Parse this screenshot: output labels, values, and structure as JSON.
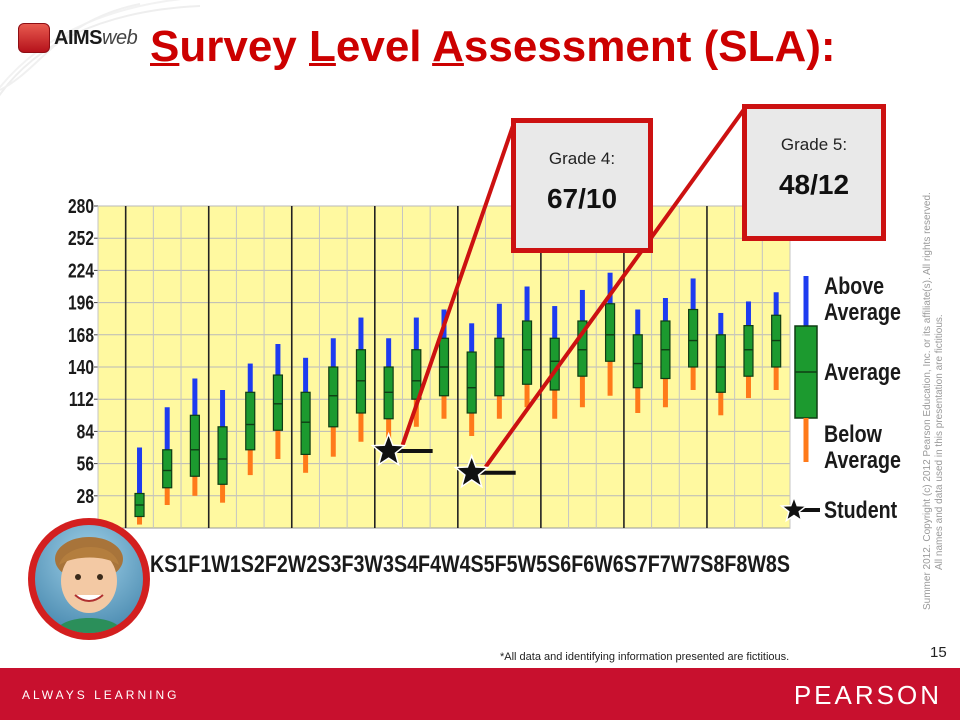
{
  "header": {
    "logo_text": "AIMS",
    "logo_suffix": "web",
    "title_s": "S",
    "title_urvey": "urvey ",
    "title_l": "L",
    "title_evel": "evel ",
    "title_a": "A",
    "title_rest": "ssessment (SLA):"
  },
  "callouts": {
    "grade4": {
      "label": "Grade 4:",
      "value": "67/10"
    },
    "grade5": {
      "label": "Grade 5:",
      "value": "48/12"
    }
  },
  "copyright": {
    "line1": "Summer 2012. Copyright (c) 2012 Pearson Education, Inc. or its affiliate(s). All rights reserved.",
    "line2": "All names and data used in this presentation are fictitious."
  },
  "footnote": "*All data and identifying information presented are fictitious.",
  "page_number": "15",
  "footer": {
    "tagline": "ALWAYS LEARNING",
    "brand": "PEARSON"
  },
  "colors": {
    "accent_red": "#cc0000",
    "plot_bg": "#fff9a0",
    "box_green": "#1c9a2f",
    "above_blue": "#1e3cf0",
    "below_orange": "#ff7a1a",
    "footer_red": "#c8102e"
  },
  "chart_data": {
    "type": "box",
    "categories": [
      "KS",
      "1F",
      "1W",
      "1S",
      "2F",
      "2W",
      "2S",
      "3F",
      "3W",
      "3S",
      "4F",
      "4W",
      "4S",
      "5F",
      "5W",
      "5S",
      "6F",
      "6W",
      "6S",
      "7F",
      "7W",
      "7S",
      "8F",
      "8W",
      "8S"
    ],
    "category_axis_text": "KS1F1W1S2F2W2S3F3W3S4F4W4S5F5W5S6F6W6S7F7W7S8F8W8S",
    "y_ticks": [
      28,
      56,
      84,
      112,
      140,
      168,
      196,
      224,
      252,
      280
    ],
    "ylim": [
      0,
      280
    ],
    "grid": true,
    "boxes": [
      null,
      {
        "low": 3,
        "q1": 10,
        "median": 20,
        "q3": 30,
        "high": 70
      },
      {
        "low": 20,
        "q1": 35,
        "median": 50,
        "q3": 68,
        "high": 105
      },
      {
        "low": 28,
        "q1": 45,
        "median": 68,
        "q3": 98,
        "high": 130
      },
      {
        "low": 22,
        "q1": 38,
        "median": 60,
        "q3": 88,
        "high": 120
      },
      {
        "low": 46,
        "q1": 68,
        "median": 90,
        "q3": 118,
        "high": 143
      },
      {
        "low": 60,
        "q1": 85,
        "median": 108,
        "q3": 133,
        "high": 160
      },
      {
        "low": 48,
        "q1": 64,
        "median": 92,
        "q3": 118,
        "high": 148
      },
      {
        "low": 62,
        "q1": 88,
        "median": 115,
        "q3": 140,
        "high": 165
      },
      {
        "low": 75,
        "q1": 100,
        "median": 128,
        "q3": 155,
        "high": 183
      },
      {
        "low": 72,
        "q1": 95,
        "median": 118,
        "q3": 140,
        "high": 165
      },
      {
        "low": 88,
        "q1": 112,
        "median": 128,
        "q3": 155,
        "high": 183
      },
      {
        "low": 95,
        "q1": 115,
        "median": 140,
        "q3": 165,
        "high": 190
      },
      {
        "low": 80,
        "q1": 100,
        "median": 122,
        "q3": 153,
        "high": 178
      },
      {
        "low": 95,
        "q1": 115,
        "median": 140,
        "q3": 165,
        "high": 195
      },
      {
        "low": 105,
        "q1": 125,
        "median": 155,
        "q3": 180,
        "high": 210
      },
      {
        "low": 95,
        "q1": 120,
        "median": 145,
        "q3": 165,
        "high": 193
      },
      {
        "low": 105,
        "q1": 132,
        "median": 155,
        "q3": 180,
        "high": 207
      },
      {
        "low": 115,
        "q1": 145,
        "median": 168,
        "q3": 195,
        "high": 222
      },
      {
        "low": 100,
        "q1": 122,
        "median": 143,
        "q3": 168,
        "high": 190
      },
      {
        "low": 105,
        "q1": 130,
        "median": 155,
        "q3": 180,
        "high": 200
      },
      {
        "low": 120,
        "q1": 140,
        "median": 163,
        "q3": 190,
        "high": 217
      },
      {
        "low": 98,
        "q1": 118,
        "median": 140,
        "q3": 168,
        "high": 187
      },
      {
        "low": 113,
        "q1": 132,
        "median": 155,
        "q3": 176,
        "high": 197
      },
      {
        "low": 120,
        "q1": 140,
        "median": 163,
        "q3": 185,
        "high": 205
      }
    ],
    "student_points": [
      {
        "category": "4F",
        "value": 67
      },
      {
        "category": "5F",
        "value": 48
      }
    ],
    "legend": {
      "position": "right",
      "above": "Above Average",
      "average": "Average",
      "below": "Below Average",
      "student": "Student"
    }
  }
}
